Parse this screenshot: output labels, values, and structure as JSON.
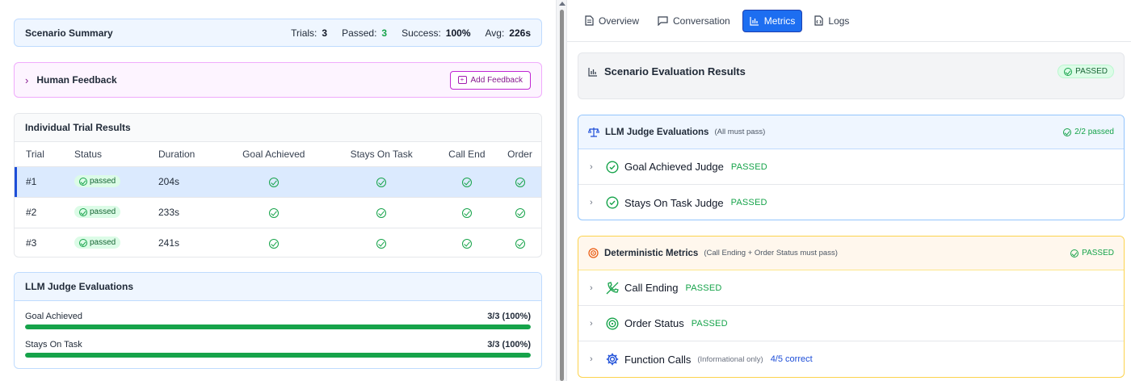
{
  "summary": {
    "title": "Scenario Summary",
    "trials_label": "Trials:",
    "trials_value": "3",
    "passed_label": "Passed:",
    "passed_value": "3",
    "success_label": "Success:",
    "success_value": "100%",
    "avg_label": "Avg:",
    "avg_value": "226s"
  },
  "feedback": {
    "chevron": "›",
    "title": "Human Feedback",
    "button": "Add Feedback"
  },
  "trials": {
    "title": "Individual Trial Results",
    "columns": [
      "Trial",
      "Status",
      "Duration",
      "Goal Achieved",
      "Stays On Task",
      "Call End",
      "Order"
    ],
    "rows": [
      {
        "trial": "#1",
        "status": "passed",
        "duration": "204s"
      },
      {
        "trial": "#2",
        "status": "passed",
        "duration": "233s"
      },
      {
        "trial": "#3",
        "status": "passed",
        "duration": "241s"
      }
    ]
  },
  "llm_left": {
    "title": "LLM Judge Evaluations",
    "items": [
      {
        "label": "Goal Achieved",
        "value": "3/3 (100%)",
        "fraction": 1.0
      },
      {
        "label": "Stays On Task",
        "value": "3/3 (100%)",
        "fraction": 1.0
      }
    ]
  },
  "tabs": [
    {
      "label": "Overview",
      "icon": "document-icon"
    },
    {
      "label": "Conversation",
      "icon": "chat-bubble-icon"
    },
    {
      "label": "Metrics",
      "icon": "bar-chart-icon"
    },
    {
      "label": "Logs",
      "icon": "file-code-icon"
    }
  ],
  "eval_results": {
    "title": "Scenario Evaluation Results",
    "badge": "PASSED"
  },
  "llm_right": {
    "title": "LLM Judge Evaluations",
    "subtitle": "(All must pass)",
    "status": "2/2 passed",
    "items": [
      {
        "label": "Goal Achieved Judge",
        "status": "PASSED"
      },
      {
        "label": "Stays On Task Judge",
        "status": "PASSED"
      }
    ]
  },
  "deterministic": {
    "title": "Deterministic Metrics",
    "subtitle": "(Call Ending + Order Status must pass)",
    "status": "PASSED",
    "items": [
      {
        "label": "Call Ending",
        "status": "PASSED"
      },
      {
        "label": "Order Status",
        "status": "PASSED"
      },
      {
        "label": "Function Calls",
        "note": "(Informational only)",
        "result": "4/5 correct"
      }
    ]
  },
  "colors": {
    "accent": "#1d6ef1",
    "success": "#16a34a",
    "brand_purple": "#a21caf",
    "warning": "#f59e0b"
  }
}
